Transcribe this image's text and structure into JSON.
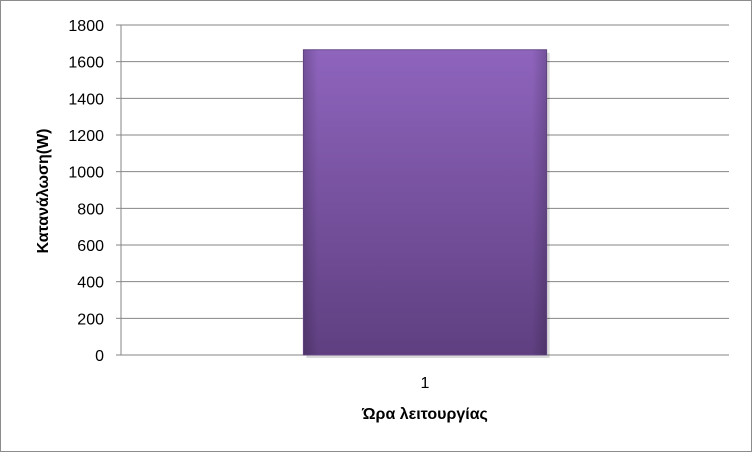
{
  "chart_data": {
    "type": "bar",
    "title": "",
    "categories": [
      "1"
    ],
    "series": [
      {
        "values": [
          1665
        ],
        "color": "#7a559c"
      }
    ],
    "xlabel": "Ώρα λειτουργίας",
    "ylabel": "Κατανάλωση(W)",
    "ylim": [
      0,
      1800
    ],
    "yticks": [
      "0",
      "200",
      "400",
      "600",
      "800",
      "1000",
      "1200",
      "1400",
      "1600",
      "1800"
    ],
    "grid": true,
    "legend": "none"
  }
}
